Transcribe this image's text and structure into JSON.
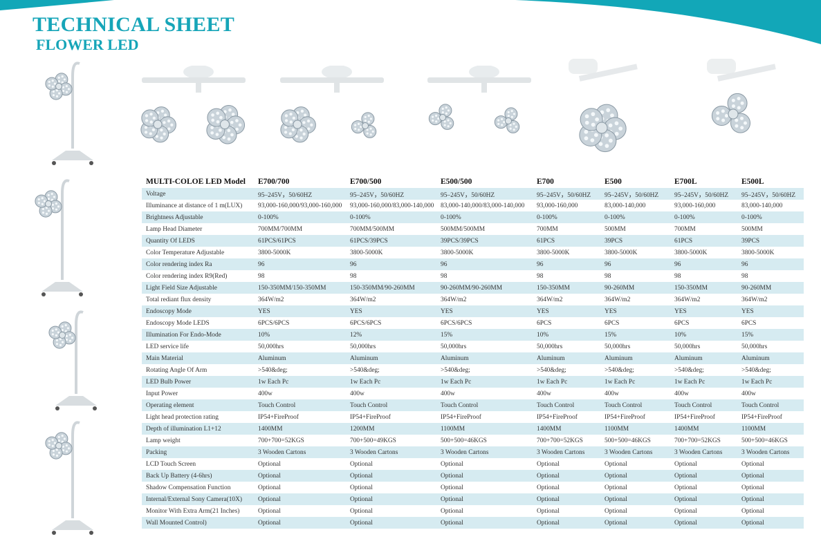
{
  "header": {
    "title": "TECHNICAL SHEET",
    "subtitle": "FLOWER LED",
    "accent_color": "#16a5b8",
    "row_shade_color": "#d6ebf1"
  },
  "images": {
    "mobile_lamps": [
      "mobile-lamp-photo",
      "mobile-lamp-photo",
      "mobile-lamp-photo",
      "mobile-lamp-photo"
    ],
    "ceiling_lamps": [
      "E700/700",
      "E700/500",
      "E500/500",
      "E700",
      "E500",
      "E700L",
      "E500L"
    ]
  },
  "table": {
    "headers": [
      "MULTI-COLOE LED Model",
      "E700/700",
      "E700/500",
      "E500/500",
      "E700",
      "E500",
      "E700L",
      "E500L"
    ],
    "rows": [
      [
        "Voltage",
        "95–245V，50/60HZ",
        "95–245V，50/60HZ",
        "95–245V，50/60HZ",
        "95–245V，50/60HZ",
        "95–245V，50/60HZ",
        "95–245V，50/60HZ",
        "95–245V，50/60HZ"
      ],
      [
        "Illuminance at distance of 1 m(LUX)",
        "93,000-160,000/93,000-160,000",
        "93,000-160,000/83,000-140,000",
        "83,000-140,000/83,000-140,000",
        "93,000-160,000",
        "83,000-140,000",
        "93,000-160,000",
        "83,000-140,000"
      ],
      [
        "Brightness Adjustable",
        "0-100%",
        "0-100%",
        "0-100%",
        "0-100%",
        "0-100%",
        "0-100%",
        "0-100%"
      ],
      [
        "Lamp Head Diameter",
        "700MM/700MM",
        "700MM/500MM",
        "500MM/500MM",
        "700MM",
        "500MM",
        "700MM",
        "500MM"
      ],
      [
        "Quantity Of LEDS",
        "61PCS/61PCS",
        "61PCS/39PCS",
        "39PCS/39PCS",
        "61PCS",
        "39PCS",
        "61PCS",
        "39PCS"
      ],
      [
        "Color Temperature Adjustable",
        "3800-5000K",
        "3800-5000K",
        "3800-5000K",
        "3800-5000K",
        "3800-5000K",
        "3800-5000K",
        "3800-5000K"
      ],
      [
        "Color rendering index Ra",
        "96",
        "96",
        "96",
        "96",
        "96",
        "96",
        "96"
      ],
      [
        "Color rendering index R9(Red)",
        "98",
        "98",
        "98",
        "98",
        "98",
        "98",
        "98"
      ],
      [
        "Light Field Size Adjustable",
        "150-350MM/150-350MM",
        "150-350MM/90-260MM",
        "90-260MM/90-260MM",
        "150-350MM",
        "90-260MM",
        "150-350MM",
        "90-260MM"
      ],
      [
        "Total rediant flux density",
        "364W/m2",
        "364W/m2",
        "364W/m2",
        "364W/m2",
        "364W/m2",
        "364W/m2",
        "364W/m2"
      ],
      [
        "Endoscopy Mode",
        "YES",
        "YES",
        "YES",
        "YES",
        "YES",
        "YES",
        "YES"
      ],
      [
        "Endoscopy Mode LEDS",
        "6PCS/6PCS",
        "6PCS/6PCS",
        "6PCS/6PCS",
        "6PCS",
        "6PCS",
        "6PCS",
        "6PCS"
      ],
      [
        "Illumination For Endo-Mode",
        "10%",
        "12%",
        "15%",
        "10%",
        "15%",
        "10%",
        "15%"
      ],
      [
        "LED service life",
        "50,000hrs",
        "50,000hrs",
        "50,000hrs",
        "50,000hrs",
        "50,000hrs",
        "50,000hrs",
        "50,000hrs"
      ],
      [
        "Main Material",
        "Aluminum",
        "Aluminum",
        "Aluminum",
        "Aluminum",
        "Aluminum",
        "Aluminum",
        "Aluminum"
      ],
      [
        "Rotating Angle Of Arm",
        ">540&deg;",
        ">540&deg;",
        ">540&deg;",
        ">540&deg;",
        ">540&deg;",
        ">540&deg;",
        ">540&deg;"
      ],
      [
        "LED Bulb Power",
        "1w Each Pc",
        "1w Each Pc",
        "1w Each Pc",
        "1w Each Pc",
        "1w Each Pc",
        "1w Each Pc",
        "1w Each Pc"
      ],
      [
        "Input Power",
        "400w",
        "400w",
        "400w",
        "400w",
        "400w",
        "400w",
        "400w"
      ],
      [
        "Operating element",
        "Touch Control",
        "Touch Control",
        "Touch Control",
        "Touch Control",
        "Touch Control",
        "Touch Control",
        "Touch Control"
      ],
      [
        "Light head protection rating",
        "IP54+FireProof",
        "IP54+FireProof",
        "IP54+FireProof",
        "IP54+FireProof",
        "IP54+FireProof",
        "IP54+FireProof",
        "IP54+FireProof"
      ],
      [
        "Depth of illumination L1+12",
        "1400MM",
        "1200MM",
        "1100MM",
        "1400MM",
        "1100MM",
        "1400MM",
        "1100MM"
      ],
      [
        "Lamp weight",
        "700+700=52KGS",
        "700+500=49KGS",
        "500+500=46KGS",
        "700+700=52KGS",
        "500+500=46KGS",
        "700+700=52KGS",
        "500+500=46KGS"
      ],
      [
        "Packing",
        "3  Wooden Cartons",
        "3  Wooden Cartons",
        "3  Wooden Cartons",
        "3  Wooden Cartons",
        "3  Wooden Cartons",
        "3  Wooden Cartons",
        "3  Wooden Cartons"
      ],
      [
        "LCD Touch Screen",
        "Optional",
        "Optional",
        "Optional",
        "Optional",
        "Optional",
        "Optional",
        "Optional"
      ],
      [
        "Back Up Battery (4-6hrs)",
        "Optional",
        "Optional",
        "Optional",
        "Optional",
        "Optional",
        "Optional",
        "Optional"
      ],
      [
        "Shadow Compensation Function",
        "Optional",
        "Optional",
        "Optional",
        "Optional",
        "Optional",
        "Optional",
        "Optional"
      ],
      [
        "Internal/External Sony Camera(10X)",
        "Optional",
        "Optional",
        "Optional",
        "Optional",
        "Optional",
        "Optional",
        "Optional"
      ],
      [
        "Monitor With Extra Arm(21 Inches)",
        "Optional",
        "Optional",
        "Optional",
        "Optional",
        "Optional",
        "Optional",
        "Optional"
      ],
      [
        "Wall Mounted Control)",
        "Optional",
        "Optional",
        "Optional",
        "Optional",
        "Optional",
        "Optional",
        "Optional"
      ]
    ]
  }
}
